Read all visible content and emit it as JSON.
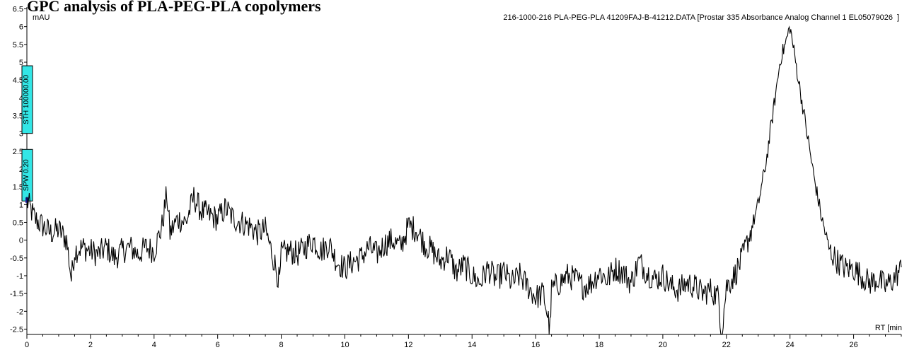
{
  "chart_data": {
    "type": "line",
    "title": "GPC analysis of PLA-PEG-PLA copolymers",
    "trace_label": "216-1000-216 PLA-PEG-PLA 41209FAJ-B-41212.DATA [Prostar 335 Absorbance Analog Channel 1 EL05079026",
    "trace_label_tail": "]",
    "ylabel": "mAU",
    "xlabel": "RT [min",
    "xlim": [
      0,
      27.5
    ],
    "ylim": [
      -2.65,
      6.55
    ],
    "x_ticks": [
      0,
      2,
      4,
      6,
      8,
      10,
      12,
      14,
      16,
      18,
      20,
      22,
      24,
      26
    ],
    "y_ticks": [
      6.5,
      6,
      5.5,
      5,
      4.5,
      4,
      3.5,
      3,
      2.5,
      2,
      1.5,
      1,
      0.5,
      0,
      -0.5,
      -1,
      -1.5,
      -2,
      -2.5
    ],
    "y_tick_labels": [
      "6.5",
      "6",
      "5.5",
      "5",
      "4.5",
      "4",
      "3.5",
      "3",
      "2.5",
      "2",
      "1.5",
      "1",
      "0.5",
      "0",
      "-0.5",
      "-1",
      "-1.5",
      "-2",
      "-2.5"
    ],
    "line_color": "#000000",
    "markers": [
      {
        "label": "STH 100000.00",
        "y_range": [
          3.0,
          4.9
        ],
        "color": "#33e6e6"
      },
      {
        "label": "SPW 0.20",
        "y_range": [
          1.1,
          2.55
        ],
        "color": "#33e6e6"
      }
    ],
    "series": [
      {
        "x": [
          0.0,
          0.25,
          0.5,
          0.75,
          1.0,
          1.25,
          1.4,
          1.5,
          1.75,
          2.0,
          2.25,
          2.5,
          2.75,
          3.0,
          3.25,
          3.5,
          3.75,
          4.0,
          4.25,
          4.4,
          4.5,
          4.75,
          5.0,
          5.25,
          5.5,
          5.75,
          6.0,
          6.25,
          6.5,
          6.75,
          7.0,
          7.25,
          7.5,
          7.75,
          7.95,
          8.0,
          8.25,
          8.5,
          8.75,
          9.0,
          9.25,
          9.5,
          9.75,
          10.0,
          10.25,
          10.5,
          10.75,
          11.0,
          11.25,
          11.5,
          11.75,
          12.0,
          12.25,
          12.5,
          12.75,
          13.0,
          13.25,
          13.5,
          13.75,
          14.0,
          14.25,
          14.5,
          14.75,
          15.0,
          15.25,
          15.5,
          15.75,
          16.0,
          16.25,
          16.45,
          16.5,
          16.75,
          17.0,
          17.25,
          17.5,
          17.75,
          18.0,
          18.25,
          18.5,
          18.75,
          19.0,
          19.25,
          19.5,
          19.75,
          20.0,
          20.25,
          20.5,
          20.75,
          21.0,
          21.25,
          21.5,
          21.75,
          21.85,
          22.0,
          22.25,
          22.5,
          22.75,
          23.0,
          23.25,
          23.5,
          23.7,
          23.85,
          24.0,
          24.25,
          24.5,
          24.75,
          25.0,
          25.25,
          25.5,
          25.75,
          26.0,
          26.25,
          26.5,
          26.75,
          27.0,
          27.25,
          27.5
        ],
        "y": [
          1.1,
          0.6,
          0.4,
          0.2,
          0.3,
          0.0,
          -1.1,
          -0.3,
          -0.2,
          -0.3,
          -0.4,
          -0.2,
          -0.5,
          -0.3,
          -0.2,
          -0.4,
          -0.2,
          -0.3,
          0.4,
          1.3,
          0.2,
          0.6,
          0.5,
          1.2,
          0.8,
          0.7,
          0.6,
          0.9,
          0.6,
          0.5,
          0.4,
          0.2,
          0.3,
          -0.5,
          -1.2,
          -0.4,
          -0.3,
          -0.4,
          -0.2,
          0.0,
          -0.3,
          -0.1,
          -0.6,
          -0.8,
          -0.6,
          -0.5,
          -0.2,
          -0.4,
          -0.1,
          0.0,
          -0.2,
          0.4,
          0.3,
          -0.1,
          -0.3,
          -0.6,
          -0.4,
          -0.9,
          -0.7,
          -1.0,
          -1.2,
          -0.8,
          -1.1,
          -0.9,
          -1.2,
          -1.0,
          -1.3,
          -1.6,
          -1.5,
          -2.5,
          -1.4,
          -1.2,
          -1.0,
          -1.1,
          -1.3,
          -1.2,
          -0.9,
          -1.1,
          -0.8,
          -0.9,
          -1.2,
          -0.6,
          -0.9,
          -1.1,
          -1.0,
          -1.3,
          -1.4,
          -1.2,
          -1.3,
          -1.5,
          -1.4,
          -1.6,
          -2.6,
          -1.3,
          -1.0,
          -0.5,
          0.2,
          1.0,
          2.2,
          3.8,
          5.1,
          5.5,
          6.0,
          4.6,
          3.2,
          1.8,
          0.6,
          -0.3,
          -0.6,
          -0.8,
          -0.8,
          -1.0,
          -1.2,
          -1.1,
          -1.3,
          -1.1,
          -0.8
        ]
      }
    ]
  }
}
